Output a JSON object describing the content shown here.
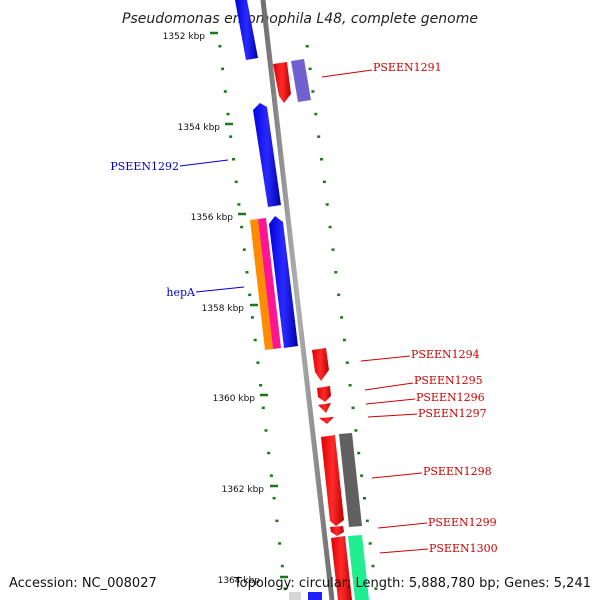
{
  "title": "Pseudomonas entomophila L48, complete genome",
  "footer": {
    "accession": "Accession: NC_008027",
    "summary": "Topology: circular; Length: 5,888,780 bp; Genes: 5,241"
  },
  "colors": {
    "backbone": "#888888",
    "tick": "#1a7a1a",
    "label_red": "#cc0000",
    "label_blue": "#0000cc"
  },
  "ticks": [
    "1352 kbp",
    "1354 kbp",
    "1356 kbp",
    "1358 kbp",
    "1360 kbp",
    "1362 kbp",
    "1364 kbp"
  ],
  "genes": [
    {
      "name": "PSEEN1291",
      "color": "#cc0000"
    },
    {
      "name": "PSEEN1292",
      "color": "#0000cc"
    },
    {
      "name": "hepA",
      "color": "#0000cc"
    },
    {
      "name": "PSEEN1294",
      "color": "#cc0000"
    },
    {
      "name": "PSEEN1295",
      "color": "#cc0000"
    },
    {
      "name": "PSEEN1296",
      "color": "#cc0000"
    },
    {
      "name": "PSEEN1297",
      "color": "#cc0000"
    },
    {
      "name": "PSEEN1298",
      "color": "#cc0000"
    },
    {
      "name": "PSEEN1299",
      "color": "#cc0000"
    },
    {
      "name": "PSEEN1300",
      "color": "#cc0000"
    }
  ]
}
